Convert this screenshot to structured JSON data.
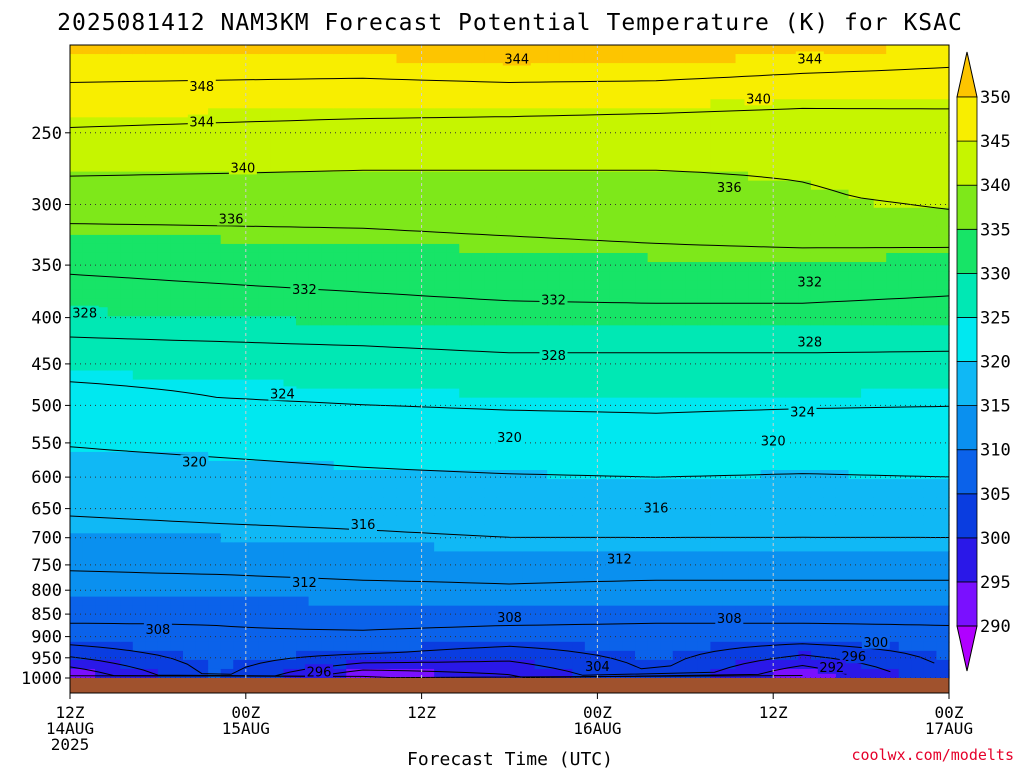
{
  "chart_data": {
    "type": "heatmap",
    "title": "2025081412 NAM3KM Forecast Potential Temperature (K) for KSAC",
    "xlabel": "Forecast Time (UTC)",
    "ylabel": "",
    "credit": "coolwx.com/modelts",
    "x_ticks": [
      {
        "t": 0,
        "lines": [
          "12Z",
          "14AUG",
          "2025"
        ]
      },
      {
        "t": 12,
        "lines": [
          "00Z",
          "15AUG"
        ]
      },
      {
        "t": 24,
        "lines": [
          "12Z"
        ]
      },
      {
        "t": 36,
        "lines": [
          "00Z",
          "16AUG"
        ]
      },
      {
        "t": 48,
        "lines": [
          "12Z"
        ]
      },
      {
        "t": 60,
        "lines": [
          "00Z",
          "17AUG"
        ]
      }
    ],
    "xlim": [
      0,
      60
    ],
    "y_ticks": [
      250,
      300,
      350,
      400,
      450,
      500,
      550,
      600,
      650,
      700,
      750,
      800,
      850,
      900,
      950,
      1000
    ],
    "ylim": [
      200,
      1000
    ],
    "y_scale": "log",
    "surface_pressure": 1010,
    "colorbar": {
      "levels": [
        290,
        295,
        300,
        305,
        310,
        315,
        320,
        325,
        330,
        335,
        340,
        345,
        350
      ],
      "colors": [
        "#b000ff",
        "#7a10ff",
        "#2a18e8",
        "#0a3de0",
        "#0b62ea",
        "#0a90ef",
        "#10b8f5",
        "#00e8f0",
        "#00e8b4",
        "#17e467",
        "#7ee81a",
        "#c6f500",
        "#f8ee00",
        "#fdc500"
      ],
      "extend": "both"
    },
    "series": [
      {
        "p": 200,
        "theta": [
          351,
          351,
          351,
          352,
          352,
          351,
          350
        ]
      },
      {
        "p": 250,
        "theta": [
          343.5,
          343,
          342.5,
          342,
          341.5,
          341,
          341.5
        ]
      },
      {
        "p": 300,
        "theta": [
          337.5,
          337.5,
          337.5,
          338,
          338.5,
          339.5,
          340.5
        ]
      },
      {
        "p": 350,
        "theta": [
          332.5,
          333,
          333.5,
          334,
          334.5,
          334.5,
          334
        ]
      },
      {
        "p": 400,
        "theta": [
          329.5,
          330,
          330.5,
          331,
          331,
          331,
          330.5
        ]
      },
      {
        "p": 450,
        "theta": [
          325.8,
          326,
          326.3,
          327,
          327,
          327,
          327
        ]
      },
      {
        "p": 500,
        "theta": [
          321.5,
          323.5,
          324,
          324.3,
          324.5,
          324.2,
          324
        ]
      },
      {
        "p": 550,
        "theta": [
          320.2,
          320.7,
          321.2,
          321.8,
          322,
          321.7,
          321.8
        ]
      },
      {
        "p": 600,
        "theta": [
          318.5,
          319,
          319.5,
          319.8,
          320,
          319.8,
          320
        ]
      },
      {
        "p": 650,
        "theta": [
          316.5,
          317,
          317.3,
          317.8,
          318,
          317.8,
          318
        ]
      },
      {
        "p": 700,
        "theta": [
          314.5,
          315,
          315.5,
          316,
          316,
          316,
          316
        ]
      },
      {
        "p": 750,
        "theta": [
          312.5,
          313,
          313.5,
          313.5,
          313.5,
          313.5,
          313.5
        ]
      },
      {
        "p": 800,
        "theta": [
          310.3,
          310.3,
          311,
          311.5,
          311,
          311,
          311
        ]
      },
      {
        "p": 850,
        "theta": [
          309,
          308.5,
          309.5,
          309.5,
          309,
          309,
          309
        ]
      },
      {
        "p": 900,
        "theta": [
          306.5,
          307.5,
          307.5,
          306.5,
          306.5,
          306.5,
          307
        ]
      },
      {
        "p": 950,
        "theta": [
          300,
          306,
          303.5,
          301,
          305.5,
          299,
          305
        ]
      },
      {
        "p": 1000,
        "theta": [
          291,
          305,
          291,
          295,
          304,
          291,
          304
        ]
      }
    ],
    "contour_levels": [
      292,
      296,
      300,
      304,
      308,
      312,
      316,
      320,
      324,
      328,
      332,
      336,
      340,
      344,
      348
    ],
    "contour_labels": [
      {
        "text": "348",
        "t": 9.0,
        "p": 222
      },
      {
        "text": "344",
        "t": 9.0,
        "p": 243
      },
      {
        "text": "340",
        "t": 11.8,
        "p": 273
      },
      {
        "text": "336",
        "t": 11.0,
        "p": 311
      },
      {
        "text": "332",
        "t": 16.0,
        "p": 372
      },
      {
        "text": "328",
        "t": 1.0,
        "p": 395
      },
      {
        "text": "324",
        "t": 14.5,
        "p": 485
      },
      {
        "text": "320",
        "t": 8.5,
        "p": 577
      },
      {
        "text": "316",
        "t": 20.0,
        "p": 676
      },
      {
        "text": "312",
        "t": 16.0,
        "p": 783
      },
      {
        "text": "308",
        "t": 6.0,
        "p": 883
      },
      {
        "text": "344",
        "t": 30.5,
        "p": 207
      },
      {
        "text": "332",
        "t": 33.0,
        "p": 382
      },
      {
        "text": "328",
        "t": 33.0,
        "p": 440
      },
      {
        "text": "320",
        "t": 30.0,
        "p": 542
      },
      {
        "text": "316",
        "t": 40.0,
        "p": 648
      },
      {
        "text": "312",
        "t": 37.5,
        "p": 738
      },
      {
        "text": "308",
        "t": 30.0,
        "p": 856
      },
      {
        "text": "296",
        "t": 17.0,
        "p": 983
      },
      {
        "text": "304",
        "t": 36.0,
        "p": 970
      },
      {
        "text": "344",
        "t": 50.5,
        "p": 207
      },
      {
        "text": "340",
        "t": 47.0,
        "p": 229
      },
      {
        "text": "336",
        "t": 45.0,
        "p": 287
      },
      {
        "text": "332",
        "t": 50.5,
        "p": 365
      },
      {
        "text": "328",
        "t": 50.5,
        "p": 425
      },
      {
        "text": "324",
        "t": 50.0,
        "p": 508
      },
      {
        "text": "320",
        "t": 48.0,
        "p": 547
      },
      {
        "text": "308",
        "t": 45.0,
        "p": 858
      },
      {
        "text": "300",
        "t": 55.0,
        "p": 912
      },
      {
        "text": "296",
        "t": 53.5,
        "p": 946
      },
      {
        "text": "292",
        "t": 52.0,
        "p": 972
      }
    ]
  }
}
